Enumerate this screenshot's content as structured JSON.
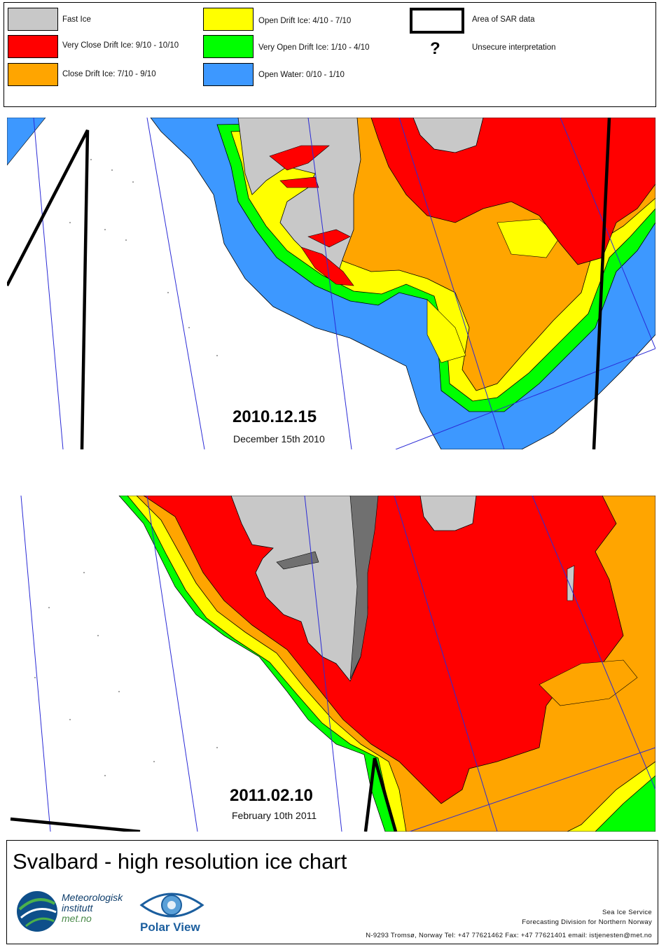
{
  "legend": {
    "items": [
      {
        "label": "Fast Ice",
        "color": "#c8c8c8"
      },
      {
        "label": "Very Close Drift Ice:  9/10 - 10/10",
        "color": "#ff0000"
      },
      {
        "label": "Close Drift Ice:  7/10 - 9/10",
        "color": "#ffa500"
      },
      {
        "label": "Open Drift Ice:  4/10 - 7/10",
        "color": "#ffff00"
      },
      {
        "label": "Very Open Drift Ice:  1/10 - 4/10",
        "color": "#00ff00"
      },
      {
        "label": "Open Water:  0/10 - 1/10",
        "color": "#3d98ff"
      }
    ],
    "sar_label": "Area of SAR data",
    "unsecure_symbol": "?",
    "unsecure_label": "Unsecure interpretation"
  },
  "maps": [
    {
      "date": "2010.12.15",
      "subtitle": "December 15th 2010"
    },
    {
      "date": "2011.02.10",
      "subtitle": "February 10th 2011"
    }
  ],
  "footer": {
    "title": "Svalbard - high resolution ice chart",
    "met_logo": {
      "line1": "Meteorologisk",
      "line2": "institutt",
      "line3": "met.no"
    },
    "polar_logo": "Polar View",
    "service": "Sea Ice Service",
    "division": "Forecasting Division for Northern Norway",
    "address": "N-9293 Tromsø, Norway   Tel: +47 77621462   Fax: +47 77621401   email: istjenesten@met.no"
  },
  "colors": {
    "fast_ice": "#c8c8c8",
    "dark_land": "#707070",
    "very_close": "#ff0000",
    "close": "#ffa500",
    "open": "#ffff00",
    "very_open": "#00ff00",
    "open_water": "#3d98ff",
    "grid": "#2b2bd6",
    "sar": "#000000"
  }
}
